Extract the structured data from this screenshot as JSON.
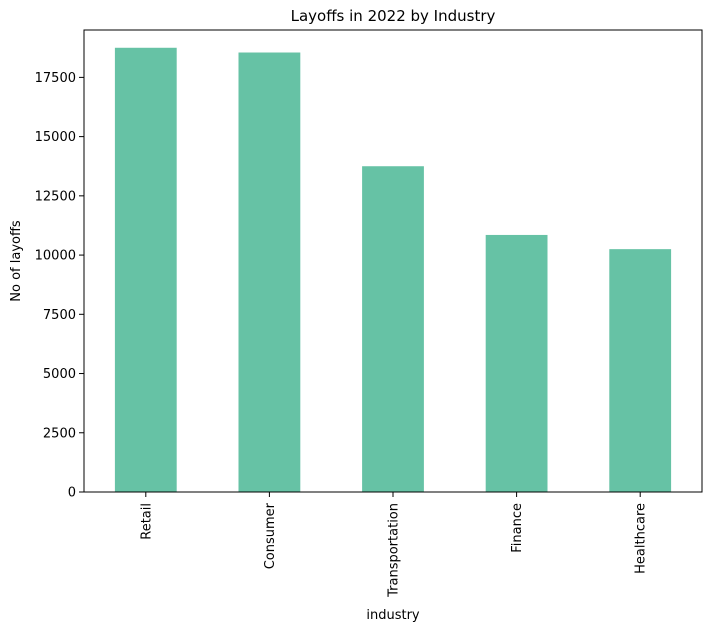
{
  "chart_data": {
    "type": "bar",
    "title": "Layoffs in 2022 by Industry",
    "xlabel": "industry",
    "ylabel": "No of layoffs",
    "categories": [
      "Retail",
      "Consumer",
      "Transportation",
      "Finance",
      "Healthcare"
    ],
    "values": [
      18750,
      18550,
      13750,
      10850,
      10250
    ],
    "ylim": [
      0,
      19500
    ],
    "yticks": [
      0,
      2500,
      5000,
      7500,
      10000,
      12500,
      15000,
      17500
    ],
    "ytick_labels": [
      "0",
      "2500",
      "5000",
      "7500",
      "10000",
      "12500",
      "15000",
      "17500"
    ],
    "bar_color": "#66c2a5",
    "grid": false,
    "legend": false
  }
}
